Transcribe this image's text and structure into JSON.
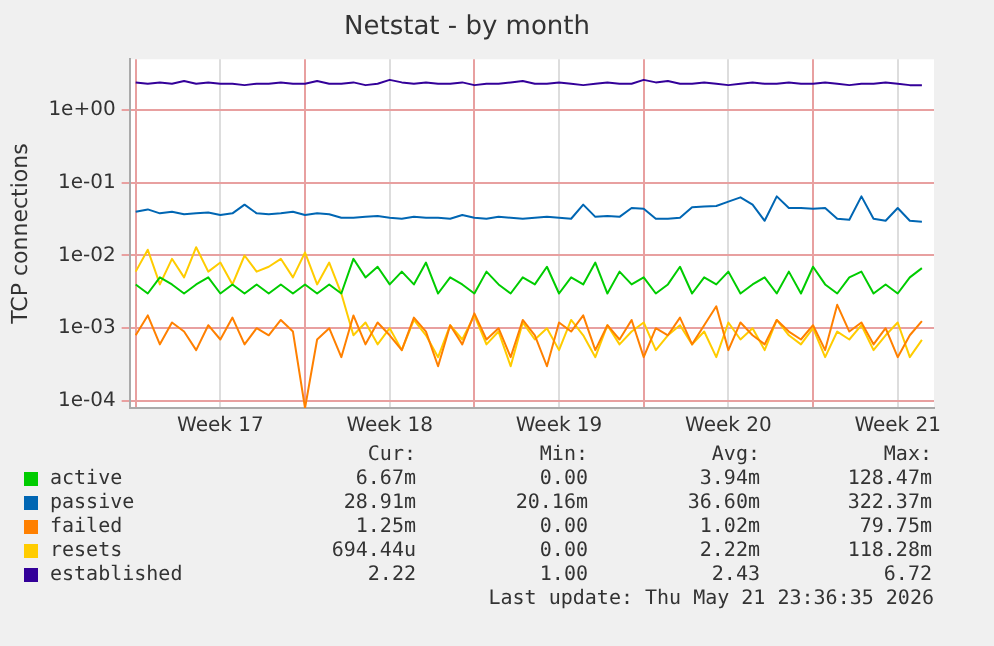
{
  "chart_data": {
    "type": "line",
    "title": "Netstat - by month",
    "ylabel": "TCP connections",
    "log": "y",
    "grid": true,
    "legend": "bottom",
    "marker": "none",
    "line_style": "solid",
    "x": [
      "2026-04-20T00:00",
      "2026-04-20T12:00",
      "2026-04-21T00:00",
      "2026-04-21T12:00",
      "2026-04-22T00:00",
      "2026-04-22T12:00",
      "2026-04-23T00:00",
      "2026-04-23T12:00",
      "2026-04-24T00:00",
      "2026-04-24T12:00",
      "2026-04-25T00:00",
      "2026-04-25T12:00",
      "2026-04-26T00:00",
      "2026-04-26T12:00",
      "2026-04-27T00:00",
      "2026-04-27T12:00",
      "2026-04-28T00:00",
      "2026-04-28T12:00",
      "2026-04-29T00:00",
      "2026-04-29T12:00",
      "2026-04-30T00:00",
      "2026-04-30T12:00",
      "2026-05-01T00:00",
      "2026-05-01T12:00",
      "2026-05-02T00:00",
      "2026-05-02T12:00",
      "2026-05-03T00:00",
      "2026-05-03T12:00",
      "2026-05-04T00:00",
      "2026-05-04T12:00",
      "2026-05-05T00:00",
      "2026-05-05T12:00",
      "2026-05-06T00:00",
      "2026-05-06T12:00",
      "2026-05-07T00:00",
      "2026-05-07T12:00",
      "2026-05-08T00:00",
      "2026-05-08T12:00",
      "2026-05-09T00:00",
      "2026-05-09T12:00",
      "2026-05-10T00:00",
      "2026-05-10T12:00",
      "2026-05-11T00:00",
      "2026-05-11T12:00",
      "2026-05-12T00:00",
      "2026-05-12T12:00",
      "2026-05-13T00:00",
      "2026-05-13T12:00",
      "2026-05-14T00:00",
      "2026-05-14T12:00",
      "2026-05-15T00:00",
      "2026-05-15T12:00",
      "2026-05-16T00:00",
      "2026-05-16T12:00",
      "2026-05-17T00:00",
      "2026-05-17T12:00",
      "2026-05-18T00:00",
      "2026-05-18T12:00",
      "2026-05-19T00:00",
      "2026-05-19T12:00",
      "2026-05-20T00:00",
      "2026-05-20T12:00",
      "2026-05-21T00:00",
      "2026-05-21T12:00",
      "2026-05-22T00:00",
      "2026-05-22T12:00"
    ],
    "xlim": [
      "2026-04-19T18:00",
      "2026-05-23T00:00"
    ],
    "xticks": [
      {
        "value": "2026-04-20",
        "label": null
      },
      {
        "value": "2026-04-23T12:00",
        "label": "Week 17"
      },
      {
        "value": "2026-04-27",
        "label": null
      },
      {
        "value": "2026-04-30T12:00",
        "label": "Week 18"
      },
      {
        "value": "2026-05-04",
        "label": null
      },
      {
        "value": "2026-05-07T12:00",
        "label": "Week 19"
      },
      {
        "value": "2026-05-11",
        "label": null
      },
      {
        "value": "2026-05-14T12:00",
        "label": "Week 20"
      },
      {
        "value": "2026-05-18",
        "label": null
      },
      {
        "value": "2026-05-21T12:00",
        "label": "Week 21"
      }
    ],
    "ylim": [
      8e-05,
      5
    ],
    "yticks": [
      {
        "value": 0.0001,
        "label": "1e-04"
      },
      {
        "value": 0.001,
        "label": "1e-03"
      },
      {
        "value": 0.01,
        "label": "1e-02"
      },
      {
        "value": 0.1,
        "label": "1e-01"
      },
      {
        "value": 1,
        "label": "1e+00"
      }
    ],
    "series": [
      {
        "name": "active",
        "color": "#00cc00",
        "values": [
          0.004,
          0.003,
          0.005,
          0.004,
          0.003,
          0.004,
          0.005,
          0.003,
          0.004,
          0.003,
          0.004,
          0.003,
          0.004,
          0.003,
          0.004,
          0.003,
          0.004,
          0.003,
          0.009,
          0.005,
          0.007,
          0.004,
          0.006,
          0.004,
          0.008,
          0.003,
          0.005,
          0.004,
          0.003,
          0.006,
          0.004,
          0.003,
          0.005,
          0.004,
          0.007,
          0.003,
          0.005,
          0.004,
          0.008,
          0.003,
          0.006,
          0.004,
          0.005,
          0.003,
          0.004,
          0.007,
          0.003,
          0.005,
          0.004,
          0.006,
          0.003,
          0.004,
          0.005,
          0.003,
          0.006,
          0.003,
          0.007,
          0.004,
          0.003,
          0.005,
          0.006,
          0.003,
          0.004,
          0.003,
          0.005,
          0.0067
        ]
      },
      {
        "name": "passive",
        "color": "#0066b3",
        "values": [
          0.04,
          0.043,
          0.038,
          0.04,
          0.037,
          0.038,
          0.039,
          0.036,
          0.038,
          0.05,
          0.038,
          0.037,
          0.038,
          0.04,
          0.036,
          0.038,
          0.037,
          0.033,
          0.033,
          0.034,
          0.035,
          0.033,
          0.032,
          0.034,
          0.033,
          0.033,
          0.032,
          0.036,
          0.033,
          0.032,
          0.034,
          0.033,
          0.032,
          0.033,
          0.034,
          0.033,
          0.032,
          0.05,
          0.034,
          0.035,
          0.034,
          0.045,
          0.044,
          0.032,
          0.032,
          0.033,
          0.046,
          0.047,
          0.048,
          0.055,
          0.063,
          0.05,
          0.03,
          0.065,
          0.045,
          0.045,
          0.044,
          0.045,
          0.032,
          0.031,
          0.065,
          0.032,
          0.03,
          0.045,
          0.03,
          0.029
        ]
      },
      {
        "name": "failed",
        "color": "#ff8000",
        "values": [
          0.0008,
          0.0015,
          0.0006,
          0.0012,
          0.0009,
          0.0005,
          0.0011,
          0.0007,
          0.0014,
          0.0006,
          0.001,
          0.0008,
          0.0013,
          0.0009,
          8e-05,
          0.0007,
          0.001,
          0.0004,
          0.0015,
          0.0006,
          0.0012,
          0.0008,
          0.0005,
          0.0014,
          0.0009,
          0.0003,
          0.0011,
          0.0006,
          0.0016,
          0.0007,
          0.001,
          0.0004,
          0.0013,
          0.0008,
          0.0003,
          0.0012,
          0.0009,
          0.0015,
          0.0005,
          0.0011,
          0.0007,
          0.0013,
          0.0004,
          0.001,
          0.0008,
          0.0014,
          0.0006,
          0.0011,
          0.002,
          0.0005,
          0.0012,
          0.0008,
          0.0006,
          0.0013,
          0.0009,
          0.0007,
          0.0011,
          0.0005,
          0.0021,
          0.0009,
          0.0012,
          0.0006,
          0.001,
          0.0004,
          0.0008,
          0.00125
        ]
      },
      {
        "name": "resets",
        "color": "#ffcc00",
        "values": [
          0.006,
          0.012,
          0.004,
          0.009,
          0.005,
          0.013,
          0.006,
          0.008,
          0.004,
          0.01,
          0.006,
          0.007,
          0.009,
          0.005,
          0.011,
          0.004,
          0.008,
          0.003,
          0.0008,
          0.0012,
          0.0006,
          0.001,
          0.0005,
          0.0013,
          0.0008,
          0.0004,
          0.0011,
          0.0007,
          0.0015,
          0.0006,
          0.0009,
          0.0003,
          0.0012,
          0.0007,
          0.001,
          0.0005,
          0.0013,
          0.0008,
          0.0004,
          0.0011,
          0.0006,
          0.0009,
          0.0012,
          0.0005,
          0.0008,
          0.0011,
          0.0006,
          0.0009,
          0.0004,
          0.0012,
          0.0007,
          0.001,
          0.0005,
          0.0013,
          0.0008,
          0.0006,
          0.001,
          0.0004,
          0.0009,
          0.0007,
          0.0011,
          0.0005,
          0.0008,
          0.0012,
          0.0004,
          0.00069
        ]
      },
      {
        "name": "established",
        "color": "#330099",
        "values": [
          2.4,
          2.3,
          2.4,
          2.3,
          2.5,
          2.3,
          2.4,
          2.3,
          2.3,
          2.2,
          2.3,
          2.3,
          2.4,
          2.3,
          2.3,
          2.5,
          2.3,
          2.3,
          2.4,
          2.2,
          2.3,
          2.6,
          2.4,
          2.3,
          2.4,
          2.3,
          2.3,
          2.4,
          2.2,
          2.3,
          2.3,
          2.4,
          2.5,
          2.3,
          2.3,
          2.4,
          2.3,
          2.2,
          2.3,
          2.4,
          2.3,
          2.3,
          2.6,
          2.4,
          2.5,
          2.3,
          2.3,
          2.4,
          2.3,
          2.2,
          2.3,
          2.4,
          2.3,
          2.3,
          2.4,
          2.3,
          2.3,
          2.4,
          2.3,
          2.2,
          2.3,
          2.3,
          2.4,
          2.3,
          2.2,
          2.2
        ]
      }
    ],
    "annotations": [
      "Cur:",
      "Min:",
      "Avg:",
      "Max:",
      "6.67m",
      "0.00",
      "3.94m",
      "128.47m",
      "28.91m",
      "20.16m",
      "36.60m",
      "322.37m",
      "1.25m",
      "0.00",
      "1.02m",
      "79.75m",
      "694.44u",
      "0.00",
      "2.22m",
      "118.28m",
      "2.22",
      "1.00",
      "2.43",
      "6.72",
      "Last update: Thu May 21 23:36:35 2026"
    ]
  }
}
